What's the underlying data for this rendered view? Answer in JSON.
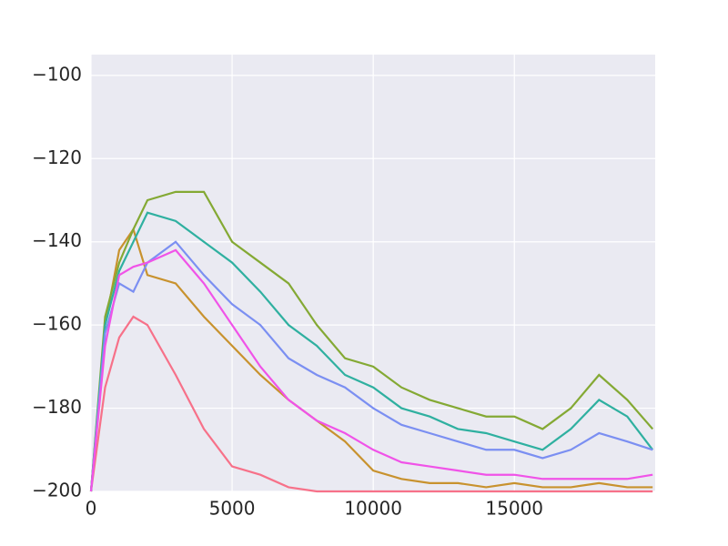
{
  "chart_data": {
    "type": "line",
    "x": [
      0,
      500,
      1000,
      1500,
      2000,
      3000,
      4000,
      5000,
      6000,
      7000,
      8000,
      9000,
      10000,
      11000,
      12000,
      13000,
      14000,
      15000,
      16000,
      17000,
      18000,
      19000,
      19900
    ],
    "series": [
      {
        "color": "#f77189",
        "values": [
          -200,
          -175,
          -163,
          -158,
          -160,
          -172,
          -185,
          -194,
          -196,
          -199,
          -200,
          -200,
          -200,
          -200,
          -200,
          -200,
          -200,
          -200,
          -200,
          -200,
          -200,
          -200,
          -200
        ]
      },
      {
        "color": "#c8922e",
        "values": [
          -200,
          -160,
          -142,
          -137,
          -148,
          -150,
          -158,
          -165,
          -172,
          -178,
          -183,
          -188,
          -195,
          -197,
          -198,
          -198,
          -199,
          -198,
          -199,
          -199,
          -198,
          -199,
          -199
        ]
      },
      {
        "color": "#84a934",
        "values": [
          -200,
          -158,
          -145,
          -137,
          -130,
          -128,
          -128,
          -140,
          -145,
          -150,
          -160,
          -168,
          -170,
          -175,
          -178,
          -180,
          -182,
          -182,
          -185,
          -180,
          -172,
          -178,
          -185
        ]
      },
      {
        "color": "#2fb0a0",
        "values": [
          -200,
          -160,
          -147,
          -140,
          -133,
          -135,
          -140,
          -145,
          -152,
          -160,
          -165,
          -172,
          -175,
          -180,
          -182,
          -185,
          -186,
          -188,
          -190,
          -185,
          -178,
          -182,
          -190
        ]
      },
      {
        "color": "#7b8ff2",
        "values": [
          -200,
          -162,
          -150,
          -152,
          -145,
          -140,
          -148,
          -155,
          -160,
          -168,
          -172,
          -175,
          -180,
          -184,
          -186,
          -188,
          -190,
          -190,
          -192,
          -190,
          -186,
          -188,
          -190
        ]
      },
      {
        "color": "#f053e8",
        "values": [
          -200,
          -165,
          -148,
          -146,
          -145,
          -142,
          -150,
          -160,
          -170,
          -178,
          -183,
          -186,
          -190,
          -193,
          -194,
          -195,
          -196,
          -196,
          -197,
          -197,
          -197,
          -197,
          -196
        ]
      }
    ],
    "xlim": [
      0,
      19990
    ],
    "xticks": [
      0,
      5000,
      10000,
      15000
    ],
    "ylim": [
      -200,
      -95
    ],
    "yticks": [
      {
        "value": -200,
        "label": "−200"
      },
      {
        "value": -180,
        "label": "−180"
      },
      {
        "value": -160,
        "label": "−160"
      },
      {
        "value": -140,
        "label": "−140"
      },
      {
        "value": -120,
        "label": "−120"
      },
      {
        "value": -100,
        "label": "−100"
      }
    ],
    "grid": true
  }
}
